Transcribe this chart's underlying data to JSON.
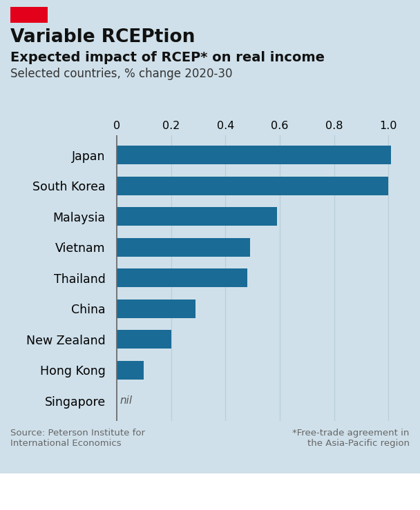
{
  "title": "Variable RCEPtion",
  "subtitle": "Expected impact of RCEP* on real income",
  "subtitle2": "Selected countries, % change 2020-30",
  "categories": [
    "Japan",
    "South Korea",
    "Malaysia",
    "Vietnam",
    "Thailand",
    "China",
    "New Zealand",
    "Hong Kong",
    "Singapore"
  ],
  "values": [
    1.01,
    1.0,
    0.59,
    0.49,
    0.48,
    0.29,
    0.2,
    0.1,
    0.0
  ],
  "bar_color": "#1a6b96",
  "background_color": "#cfe0ea",
  "grid_color": "#b8cfd8",
  "xlim": [
    -0.02,
    1.07
  ],
  "xticks": [
    0,
    0.2,
    0.4,
    0.6,
    0.8,
    1.0
  ],
  "xtick_labels": [
    "0",
    "0.2",
    "0.4",
    "0.6",
    "0.8",
    "1.0"
  ],
  "source_text": "Source: Peterson Institute for\nInternational Economics",
  "footnote_text": "*Free-trade agreement in\nthe Asia-Pacific region",
  "nil_label": "nil",
  "title_fontsize": 19,
  "subtitle_fontsize": 14,
  "subtitle2_fontsize": 12,
  "bar_height": 0.6,
  "red_rect_color": "#e3001b",
  "economist_bg": "#ffffff"
}
